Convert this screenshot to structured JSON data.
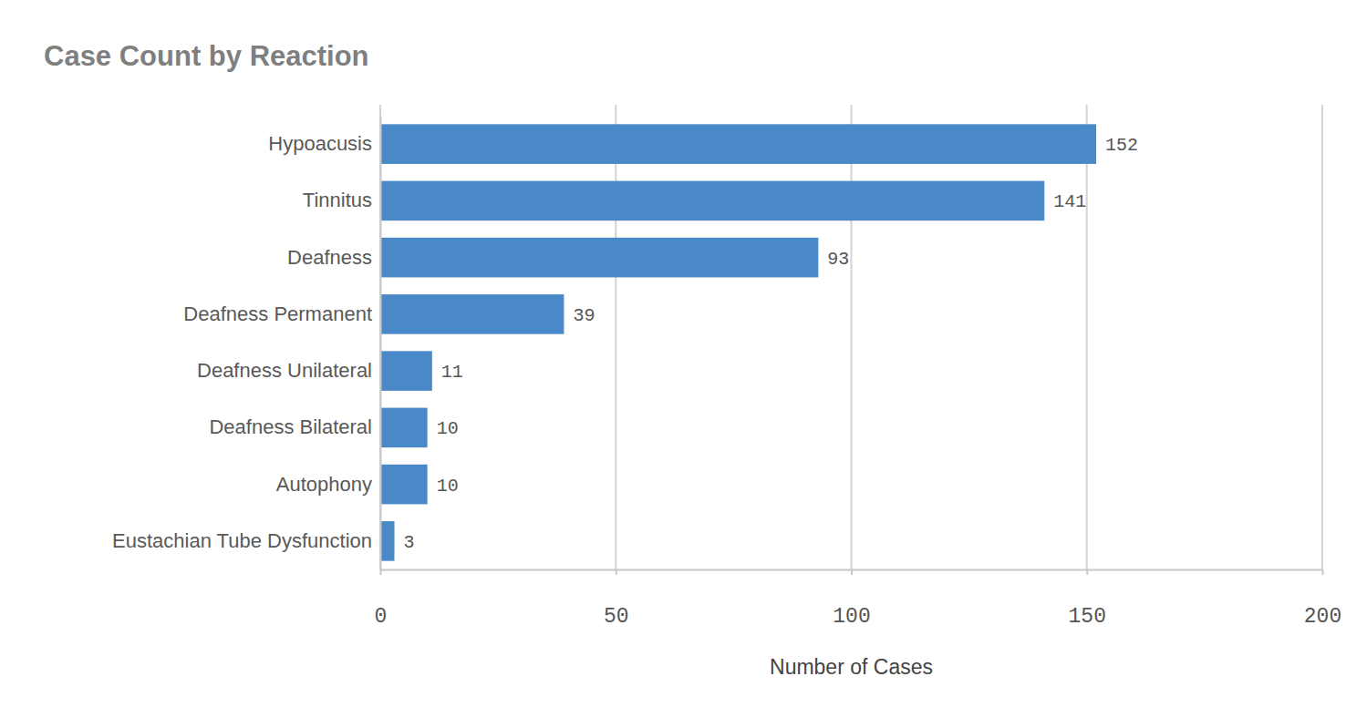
{
  "chart_data": {
    "type": "bar",
    "title": "Case Count by Reaction",
    "orientation": "horizontal",
    "categories": [
      "Hypoacusis",
      "Tinnitus",
      "Deafness",
      "Deafness Permanent",
      "Deafness Unilateral",
      "Deafness Bilateral",
      "Autophony",
      "Eustachian Tube Dysfunction"
    ],
    "values": [
      152,
      141,
      93,
      39,
      11,
      10,
      10,
      3
    ],
    "color": "#4a89c8",
    "xlabel": "Number of Cases",
    "xlim": [
      0,
      200
    ],
    "xticks": [
      0,
      50,
      100,
      150,
      200
    ],
    "grid": true,
    "data_labels": true
  }
}
